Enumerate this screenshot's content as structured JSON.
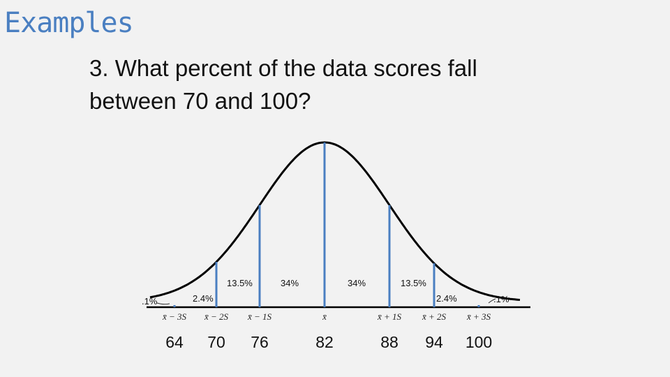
{
  "slide": {
    "title": "Examples",
    "question": "3. What percent of the data scores fall between 70 and 100?"
  },
  "diagram": {
    "mean_score": 82,
    "sd": 6,
    "line_color": "#4a7fc1",
    "curve_color": "#000000",
    "percent_labels": [
      ".1%",
      "2.4%",
      "13.5%",
      "34%",
      "34%",
      "13.5%",
      "2.4%",
      ".1%"
    ],
    "markers": [
      {
        "symbol": "x̄ − 3S",
        "score": "64"
      },
      {
        "symbol": "x̄ − 2S",
        "score": "70"
      },
      {
        "symbol": "x̄ − 1S",
        "score": "76"
      },
      {
        "symbol": "x̄",
        "score": "82"
      },
      {
        "symbol": "x̄ + 1S",
        "score": "88"
      },
      {
        "symbol": "x̄ + 2S",
        "score": "94"
      },
      {
        "symbol": "x̄ + 3S",
        "score": "100"
      }
    ]
  }
}
